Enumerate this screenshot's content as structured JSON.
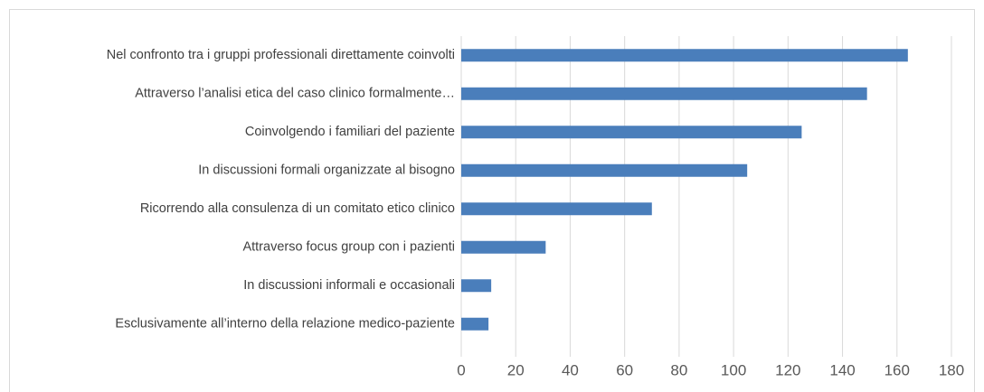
{
  "chart_data": {
    "type": "hbar",
    "categories": [
      "Nel confronto tra i gruppi professionali direttamente coinvolti",
      "Attraverso l’analisi etica del caso clinico formalmente…",
      "Coinvolgendo i familiari del paziente",
      "In discussioni formali organizzate al bisogno",
      "Ricorrendo alla consulenza di un comitato etico clinico",
      "Attraverso focus group con i pazienti",
      "In discussioni informali e occasionali",
      "Esclusivamente all’interno della relazione medico-paziente"
    ],
    "values": [
      164,
      149,
      125,
      105,
      70,
      31,
      11,
      10
    ],
    "color": "#4a7ebb",
    "xlim": [
      0,
      180
    ],
    "xticks": [
      0,
      20,
      40,
      60,
      80,
      100,
      120,
      140,
      160,
      180
    ],
    "grid": true
  }
}
